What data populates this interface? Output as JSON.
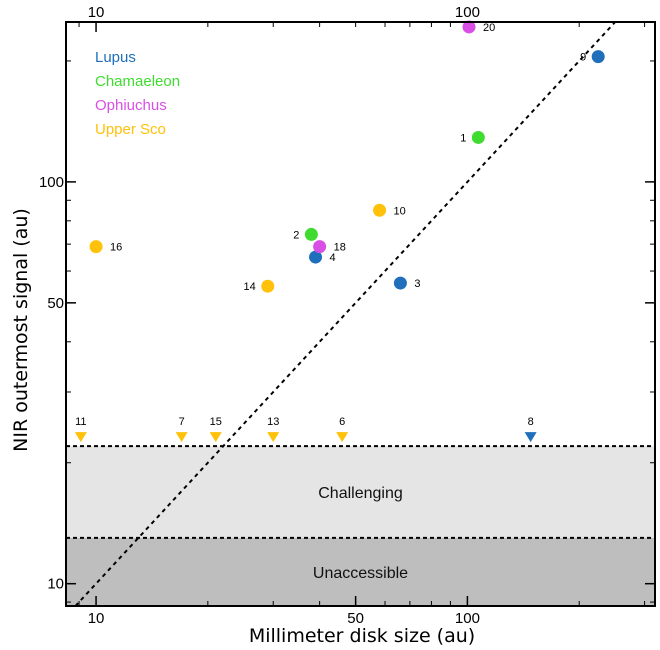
{
  "chart_data": {
    "type": "scatter",
    "xlabel": "Millimeter disk size (au)",
    "ylabel": "NIR outermost signal (au)",
    "x_scale": "log",
    "y_scale": "log",
    "xlim": [
      8.3,
      320
    ],
    "ylim": [
      8.8,
      250
    ],
    "x_ticks": [
      {
        "value": 10,
        "label": "10"
      },
      {
        "value": 50,
        "label": "50"
      },
      {
        "value": 100,
        "label": "100"
      }
    ],
    "x_top_ticks": [
      {
        "value": 10,
        "label": "10"
      },
      {
        "value": 100,
        "label": "100"
      }
    ],
    "y_ticks": [
      {
        "value": 10,
        "label": "10"
      },
      {
        "value": 50,
        "label": "50"
      },
      {
        "value": 100,
        "label": "100"
      }
    ],
    "legend_position": "top-left",
    "colors": {
      "Lupus": "#1f6fba",
      "Chamaeleon": "#3fdc2f",
      "Ophiuchus": "#d94fe6",
      "Upper Sco": "#ffc10a"
    },
    "series": [
      {
        "name": "Lupus",
        "points": [
          {
            "id": "9",
            "x": 225,
            "y": 205
          },
          {
            "id": "4",
            "x": 39,
            "y": 65
          },
          {
            "id": "3",
            "x": 66,
            "y": 56
          }
        ]
      },
      {
        "name": "Chamaeleon",
        "points": [
          {
            "id": "1",
            "x": 107,
            "y": 129
          },
          {
            "id": "2",
            "x": 38,
            "y": 74
          }
        ]
      },
      {
        "name": "Ophiuchus",
        "points": [
          {
            "id": "20",
            "x": 101,
            "y": 243
          },
          {
            "id": "18",
            "x": 40,
            "y": 69
          }
        ]
      },
      {
        "name": "Upper Sco",
        "points": [
          {
            "id": "16",
            "x": 10,
            "y": 69
          },
          {
            "id": "10",
            "x": 58,
            "y": 85
          },
          {
            "id": "14",
            "x": 29,
            "y": 55
          }
        ]
      }
    ],
    "upper_limits": [
      {
        "id": "11",
        "x": 9.1,
        "series": "Upper Sco"
      },
      {
        "id": "7",
        "x": 17,
        "series": "Upper Sco"
      },
      {
        "id": "15",
        "x": 21,
        "series": "Upper Sco"
      },
      {
        "id": "13",
        "x": 30,
        "series": "Upper Sco"
      },
      {
        "id": "6",
        "x": 46,
        "series": "Upper Sco"
      },
      {
        "id": "8",
        "x": 148,
        "series": "Lupus"
      }
    ],
    "limit_y": 22,
    "one_to_one_line": true,
    "regions": [
      {
        "label": "Challenging",
        "y_from": 13,
        "y_to": 22,
        "color": "#e5e5e5"
      },
      {
        "label": "Unaccessible",
        "y_from": 8.8,
        "y_to": 13,
        "color": "#bebebe"
      }
    ]
  }
}
